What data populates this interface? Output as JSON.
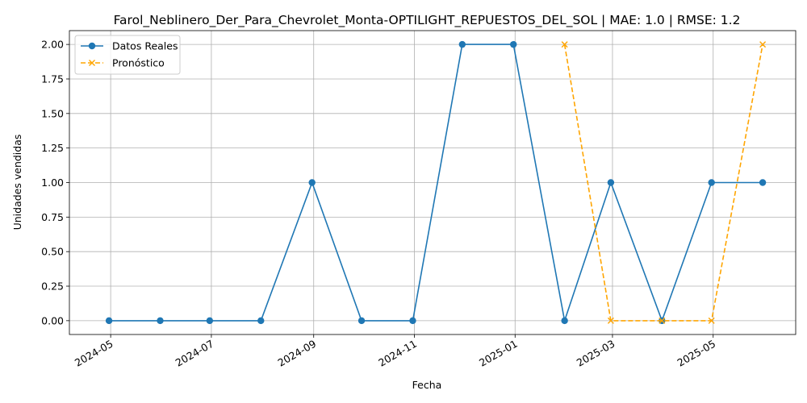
{
  "chart_data": {
    "type": "line",
    "title": "Farol_Neblinero_Der_Para_Chevrolet_Monta-OPTILIGHT_REPUESTOS_DEL_SOL | MAE: 1.0 | RMSE: 1.2",
    "xlabel": "Fecha",
    "ylabel": "Unidades vendidas",
    "xlim": [
      "2024-04-06",
      "2025-06-20"
    ],
    "ylim": [
      -0.1,
      2.1
    ],
    "x_ticks": [
      "2024-05-01",
      "2024-07-01",
      "2024-09-01",
      "2024-11-01",
      "2025-01-01",
      "2025-03-01",
      "2025-05-01"
    ],
    "x_tick_labels": [
      "2024-05",
      "2024-07",
      "2024-09",
      "2024-11",
      "2025-01",
      "2025-03",
      "2025-05"
    ],
    "y_ticks": [
      0.0,
      0.25,
      0.5,
      0.75,
      1.0,
      1.25,
      1.5,
      1.75,
      2.0
    ],
    "y_tick_labels": [
      "0.00",
      "0.25",
      "0.50",
      "0.75",
      "1.00",
      "1.25",
      "1.50",
      "1.75",
      "2.00"
    ],
    "grid": true,
    "legend_position": "top-left",
    "series": [
      {
        "name": "Datos Reales",
        "color": "#1f77b4",
        "style": "solid",
        "marker": "circle",
        "x": [
          "2024-04-30",
          "2024-05-31",
          "2024-06-30",
          "2024-07-31",
          "2024-08-31",
          "2024-09-30",
          "2024-10-31",
          "2024-11-30",
          "2024-12-31",
          "2025-01-31",
          "2025-02-28",
          "2025-03-31",
          "2025-04-30",
          "2025-05-31"
        ],
        "y": [
          0,
          0,
          0,
          0,
          1,
          0,
          0,
          2,
          2,
          0,
          1,
          0,
          1,
          1
        ]
      },
      {
        "name": "Pronóstico",
        "color": "#ffa500",
        "style": "dashed",
        "marker": "x",
        "x": [
          "2025-01-31",
          "2025-02-28",
          "2025-03-31",
          "2025-04-30",
          "2025-05-31"
        ],
        "y": [
          2,
          0,
          0,
          0,
          2
        ]
      }
    ]
  }
}
